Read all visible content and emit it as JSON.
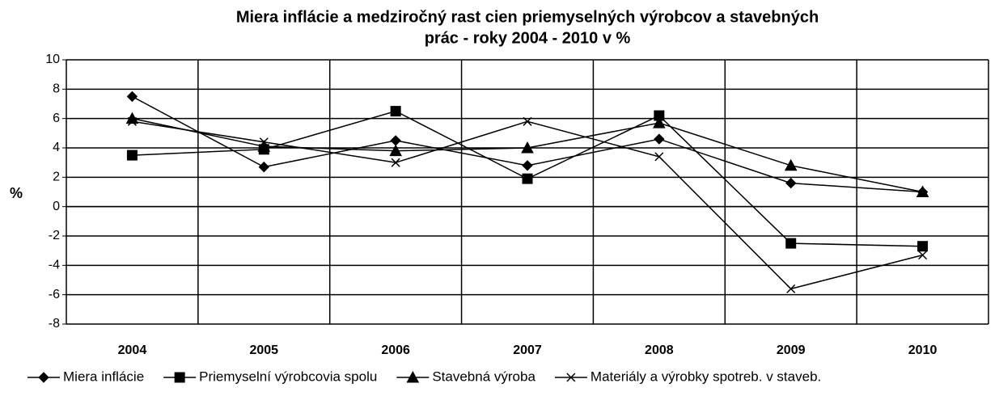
{
  "chart_data": {
    "type": "line",
    "title": [
      "Miera inflácie a medziročný rast cien priemyselných výrobcov a stavebných",
      "prác - roky 2004 - 2010 v %"
    ],
    "ylabel": "%",
    "categories": [
      "2004",
      "2005",
      "2006",
      "2007",
      "2008",
      "2009",
      "2010"
    ],
    "series": [
      {
        "name": "Miera inflácie",
        "color": "#000000",
        "marker": "diamond",
        "values": [
          7.5,
          2.7,
          4.5,
          2.8,
          4.6,
          1.6,
          1.0
        ]
      },
      {
        "name": "Priemyselní výrobcovia spolu",
        "color": "#000000",
        "marker": "square",
        "values": [
          3.5,
          3.9,
          6.5,
          1.9,
          6.2,
          -2.5,
          -2.7
        ]
      },
      {
        "name": "Stavebná výroba",
        "color": "#000000",
        "marker": "triangle",
        "values": [
          6.0,
          4.1,
          3.8,
          4.0,
          5.7,
          2.8,
          1.0
        ]
      },
      {
        "name": "Materiály a výrobky spotreb. v staveb.",
        "color": "#000000",
        "marker": "cross",
        "values": [
          5.8,
          4.4,
          3.0,
          5.8,
          3.4,
          -5.6,
          -3.3
        ]
      }
    ],
    "ylim": [
      -8,
      10
    ],
    "yticks": [
      -8,
      -6,
      -4,
      -2,
      0,
      2,
      4,
      6,
      8,
      10
    ],
    "grid": true,
    "legend": "bottom"
  }
}
